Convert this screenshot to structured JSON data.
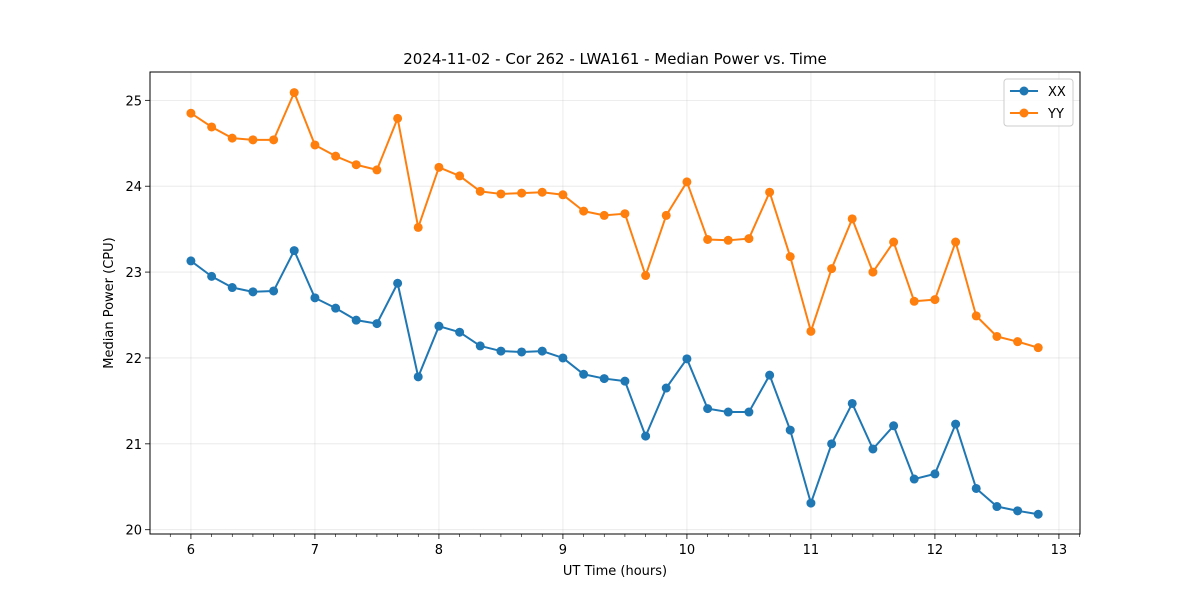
{
  "chart_data": {
    "type": "line",
    "title": "2024-11-02 - Cor 262 - LWA161 - Median Power vs. Time",
    "xlabel": "UT Time (hours)",
    "ylabel": "Median Power (CPU)",
    "xlim": [
      5.67,
      13.17
    ],
    "ylim": [
      19.95,
      25.33
    ],
    "xticks": [
      6,
      7,
      8,
      9,
      10,
      11,
      12,
      13
    ],
    "xtick_labels": [
      "6",
      "7",
      "8",
      "9",
      "10",
      "11",
      "12",
      "13"
    ],
    "yticks": [
      20,
      21,
      22,
      23,
      24,
      25
    ],
    "ytick_labels": [
      "20",
      "21",
      "22",
      "23",
      "24",
      "25"
    ],
    "grid": true,
    "legend_position": "top-right",
    "x": [
      6.0,
      6.167,
      6.333,
      6.5,
      6.667,
      6.833,
      7.0,
      7.167,
      7.333,
      7.5,
      7.667,
      7.833,
      8.0,
      8.167,
      8.333,
      8.5,
      8.667,
      8.833,
      9.0,
      9.167,
      9.333,
      9.5,
      9.667,
      9.833,
      10.0,
      10.167,
      10.333,
      10.5,
      10.667,
      10.833,
      11.0,
      11.167,
      11.333,
      11.5,
      11.667,
      11.833,
      12.0,
      12.167,
      12.333,
      12.5,
      12.667,
      12.833
    ],
    "series": [
      {
        "name": "XX",
        "color": "#1f77b4",
        "values": [
          23.13,
          22.95,
          22.82,
          22.77,
          22.78,
          23.25,
          22.7,
          22.58,
          22.44,
          22.4,
          22.87,
          21.78,
          22.37,
          22.3,
          22.14,
          22.08,
          22.07,
          22.08,
          22.0,
          21.81,
          21.76,
          21.73,
          21.09,
          21.65,
          21.99,
          21.41,
          21.37,
          21.37,
          21.8,
          21.16,
          20.31,
          21.0,
          21.47,
          20.94,
          21.21,
          20.59,
          20.65,
          21.23,
          20.48,
          20.27,
          20.22,
          20.18
        ]
      },
      {
        "name": "YY",
        "color": "#ff7f0e",
        "values": [
          24.85,
          24.69,
          24.56,
          24.54,
          24.54,
          25.09,
          24.48,
          24.35,
          24.25,
          24.19,
          24.79,
          23.52,
          24.22,
          24.12,
          23.94,
          23.91,
          23.92,
          23.93,
          23.9,
          23.71,
          23.66,
          23.68,
          22.96,
          23.66,
          24.05,
          23.38,
          23.37,
          23.39,
          23.93,
          23.18,
          22.31,
          23.04,
          23.62,
          23.0,
          23.35,
          22.66,
          22.68,
          23.35,
          22.49,
          22.25,
          22.19,
          22.12
        ]
      }
    ]
  }
}
